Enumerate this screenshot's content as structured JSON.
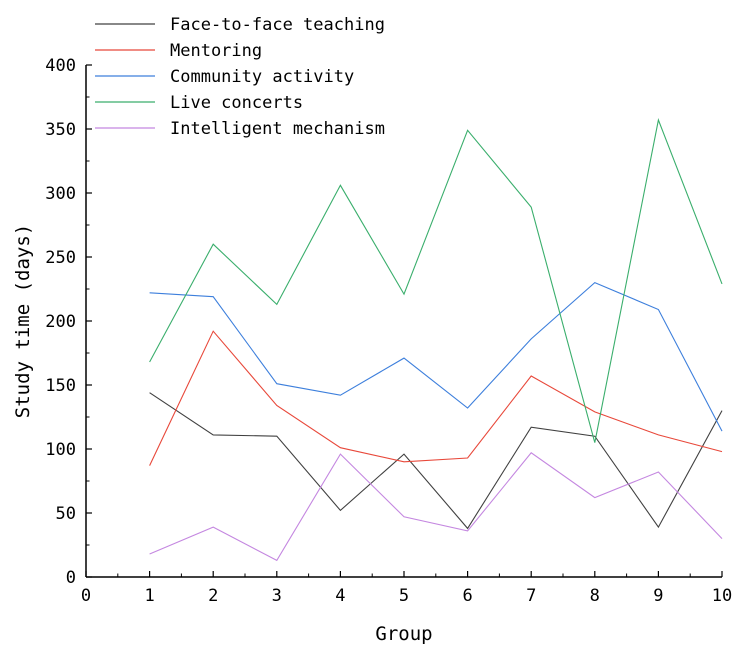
{
  "chart_data": {
    "type": "line",
    "title": "",
    "xlabel": "Group",
    "ylabel": "Study time (days)",
    "xlim": [
      0,
      10
    ],
    "ylim": [
      0,
      400
    ],
    "x_ticks": [
      0,
      1,
      2,
      3,
      4,
      5,
      6,
      7,
      8,
      9,
      10
    ],
    "y_ticks": [
      0,
      50,
      100,
      150,
      200,
      250,
      300,
      350,
      400
    ],
    "grid": false,
    "legend_position": "top-left",
    "x": [
      1,
      2,
      3,
      4,
      5,
      6,
      7,
      8,
      9,
      10
    ],
    "series": [
      {
        "name": "Face-to-face teaching",
        "color": "#404040",
        "values": [
          144,
          111,
          110,
          52,
          96,
          38,
          117,
          110,
          39,
          130
        ]
      },
      {
        "name": "Mentoring",
        "color": "#e8483a",
        "values": [
          87,
          192,
          134,
          101,
          90,
          93,
          157,
          129,
          111,
          98
        ]
      },
      {
        "name": "Community activity",
        "color": "#3d7fdc",
        "values": [
          222,
          219,
          151,
          142,
          171,
          132,
          186,
          230,
          209,
          114
        ]
      },
      {
        "name": "Live concerts",
        "color": "#3aae6c",
        "values": [
          168,
          260,
          213,
          306,
          221,
          349,
          289,
          105,
          357,
          229
        ]
      },
      {
        "name": "Intelligent mechanism",
        "color": "#c487e0",
        "values": [
          18,
          39,
          13,
          96,
          47,
          36,
          97,
          62,
          82,
          30
        ]
      }
    ]
  }
}
